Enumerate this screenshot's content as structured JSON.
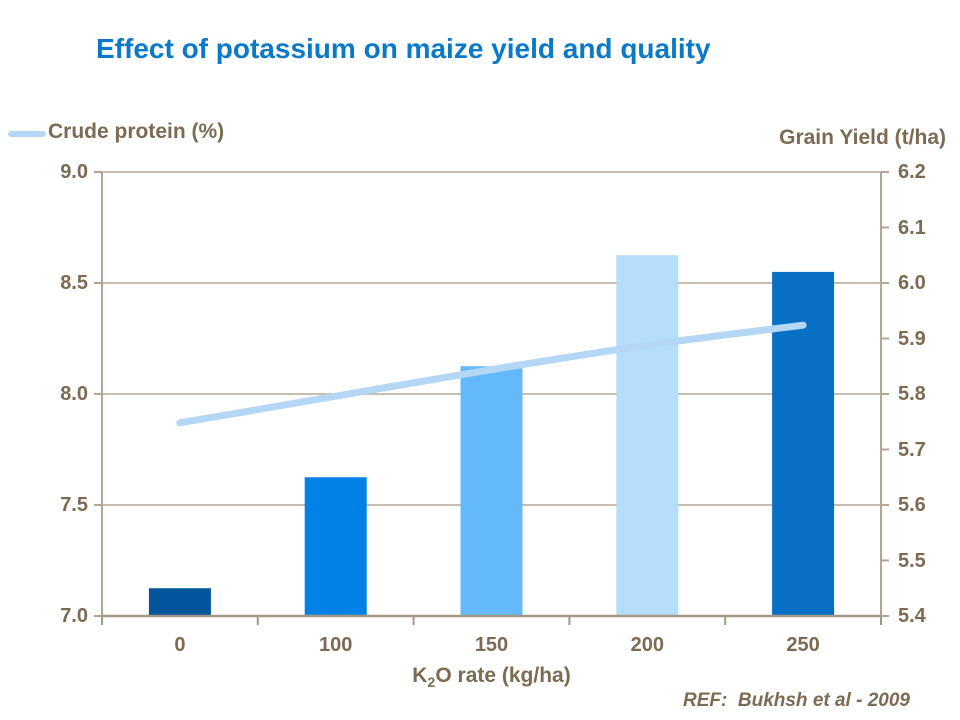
{
  "title": "Effect of potassium on maize yield and quality",
  "legend": {
    "crude_protein_label": "Crude protein (%)"
  },
  "axes": {
    "right_title": "Grain Yield (t/ha)"
  },
  "x_axis": {
    "base": "K",
    "sub": "2",
    "rest": "O rate (kg/ha)"
  },
  "footer": {
    "ref": "REF:  Bukhsh et al - 2009"
  },
  "colors": {
    "title": "#0b79c9",
    "axis_text": "#7d6a53",
    "axis_line": "#b2a595",
    "axis_line_bottom": "#a59786",
    "gridline": "#c8bdaf",
    "line_series": "#b3d7f4"
  },
  "chart_data": {
    "type": "combo_bar_line",
    "description": "Dual-axis column chart with smoothed line overlay",
    "categories": [
      "0",
      "100",
      "150",
      "200",
      "250"
    ],
    "series": [
      {
        "name": "Grain Yield (t/ha)",
        "chart": "bar",
        "axis": "right",
        "values": [
          5.45,
          5.65,
          5.85,
          6.05,
          6.02
        ],
        "bar_colors": [
          "#04569c",
          "#0081e5",
          "#64b9fa",
          "#b5defb",
          "#0870c4"
        ]
      },
      {
        "name": "Crude protein (%)",
        "chart": "line",
        "axis": "left",
        "values": [
          7.87,
          7.99,
          8.11,
          8.22,
          8.31
        ],
        "color": "#b3d7f4"
      }
    ],
    "left_axis": {
      "min": 7.0,
      "max": 9.0,
      "ticks": [
        "9.0",
        "8.5",
        "8.0",
        "7.5",
        "7.0"
      ]
    },
    "right_axis": {
      "min": 5.4,
      "max": 6.2,
      "ticks": [
        "6.2",
        "6.1",
        "6.0",
        "5.9",
        "5.8",
        "5.7",
        "5.6",
        "5.5",
        "5.4"
      ],
      "title": "Grain Yield (t/ha)"
    },
    "xlabel": "K2O rate (kg/ha)",
    "title": "Effect of potassium on maize yield and quality",
    "legend_position": "top-left",
    "grid": "horizontal"
  }
}
